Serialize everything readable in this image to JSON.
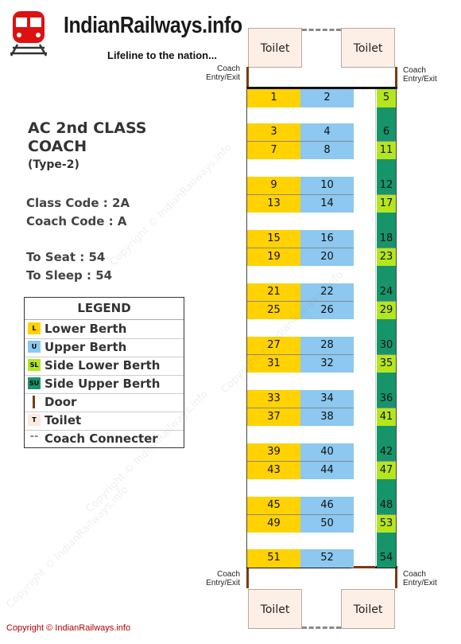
{
  "header": {
    "site_name": "IndianRailways.info",
    "tagline": "Lifeline to the nation..."
  },
  "coach": {
    "title_line1": "AC 2nd CLASS",
    "title_line2": "COACH",
    "type": "(Type-2)",
    "class_code": "Class Code : 2A",
    "coach_code": "Coach Code : A",
    "to_seat": "To Seat : 54",
    "to_sleep": "To Sleep : 54"
  },
  "legend": {
    "title": "LEGEND",
    "items": [
      {
        "abbr": "L",
        "label": "Lower Berth",
        "color": "#ffd200"
      },
      {
        "abbr": "U",
        "label": "Upper Berth",
        "color": "#8cc8f0"
      },
      {
        "abbr": "SL",
        "label": "Side Lower Berth",
        "color": "#b4e61e"
      },
      {
        "abbr": "SU",
        "label": "Side Upper Berth",
        "color": "#16956a"
      },
      {
        "abbr": "",
        "label": "Door",
        "color": "#7a3c12"
      },
      {
        "abbr": "T",
        "label": "Toilet",
        "color": "#fde9df"
      },
      {
        "abbr": "--",
        "label": "Coach Connecter",
        "color": "#888888"
      }
    ]
  },
  "colors": {
    "lower": "#ffd200",
    "upper": "#8cc8f0",
    "side_lower": "#b4e61e",
    "side_upper": "#16956a",
    "door": "#7a3c12",
    "wall": "#111111"
  },
  "toilets": {
    "label": "Toilet"
  },
  "entry_label": {
    "line1": "Coach",
    "line2": "Entry/Exit"
  },
  "bays": [
    {
      "lower": [
        "1"
      ],
      "upper": [
        "2"
      ],
      "side": [
        "5"
      ]
    },
    {
      "lower": [
        "3",
        "7"
      ],
      "upper": [
        "4",
        "8"
      ],
      "side": [
        "6",
        "11"
      ]
    },
    {
      "lower": [
        "9",
        "13"
      ],
      "upper": [
        "10",
        "14"
      ],
      "side": [
        "12",
        "17"
      ]
    },
    {
      "lower": [
        "15",
        "19"
      ],
      "upper": [
        "16",
        "20"
      ],
      "side": [
        "18",
        "23"
      ]
    },
    {
      "lower": [
        "21",
        "25"
      ],
      "upper": [
        "22",
        "26"
      ],
      "side": [
        "24",
        "29"
      ]
    },
    {
      "lower": [
        "27",
        "31"
      ],
      "upper": [
        "28",
        "32"
      ],
      "side": [
        "30",
        "35"
      ]
    },
    {
      "lower": [
        "33",
        "37"
      ],
      "upper": [
        "34",
        "38"
      ],
      "side": [
        "36",
        "41"
      ]
    },
    {
      "lower": [
        "39",
        "43"
      ],
      "upper": [
        "40",
        "44"
      ],
      "side": [
        "42",
        "47"
      ]
    },
    {
      "lower": [
        "45",
        "49"
      ],
      "upper": [
        "46",
        "50"
      ],
      "side": [
        "48",
        "53"
      ]
    },
    {
      "lower": [
        "51"
      ],
      "upper": [
        "52"
      ],
      "side": [
        "54"
      ]
    }
  ],
  "footer": {
    "copyright": "Copyright © IndianRailways.info"
  },
  "watermark": {
    "text": "Copyright © IndianRailways.info"
  }
}
